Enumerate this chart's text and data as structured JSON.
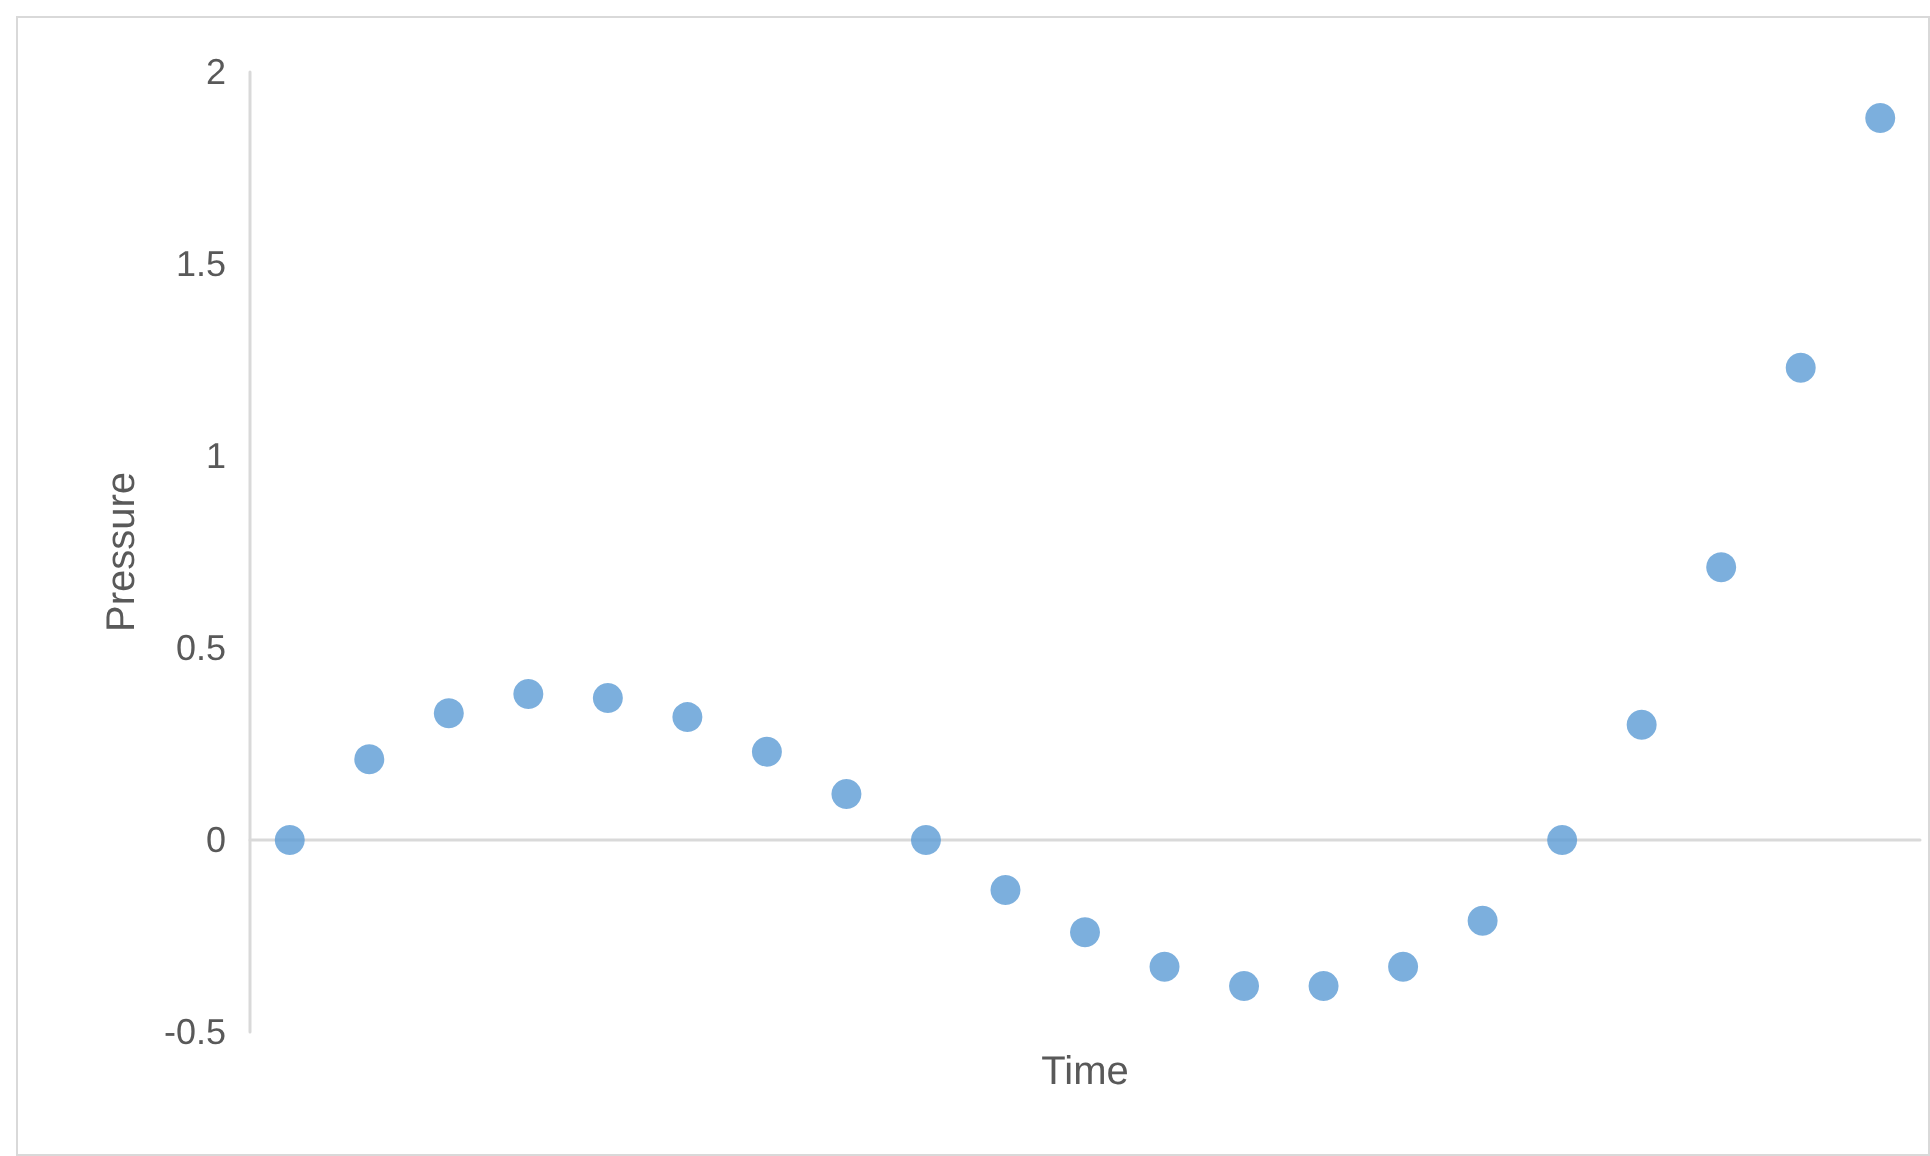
{
  "chart_data": {
    "type": "scatter",
    "xlabel": "Time",
    "ylabel": "Pressure",
    "categories": [
      null,
      null,
      null,
      null,
      null,
      null,
      null,
      null,
      null,
      null,
      null,
      null,
      null,
      null,
      null,
      null,
      null,
      null,
      null,
      null,
      null
    ],
    "series": [
      {
        "color": "#5b9bd5",
        "values": [
          0,
          0.21,
          0.33,
          0.38,
          0.37,
          0.32,
          0.23,
          0.12,
          0,
          -0.13,
          -0.24,
          -0.33,
          -0.38,
          -0.38,
          -0.33,
          -0.21,
          0,
          0.3,
          0.71,
          1.23,
          1.88
        ]
      }
    ],
    "ylim": [
      -0.5,
      2
    ],
    "yticks": [
      -0.5,
      0,
      0.5,
      1,
      1.5,
      2
    ],
    "tick_labels": "y",
    "marker": "circle"
  }
}
